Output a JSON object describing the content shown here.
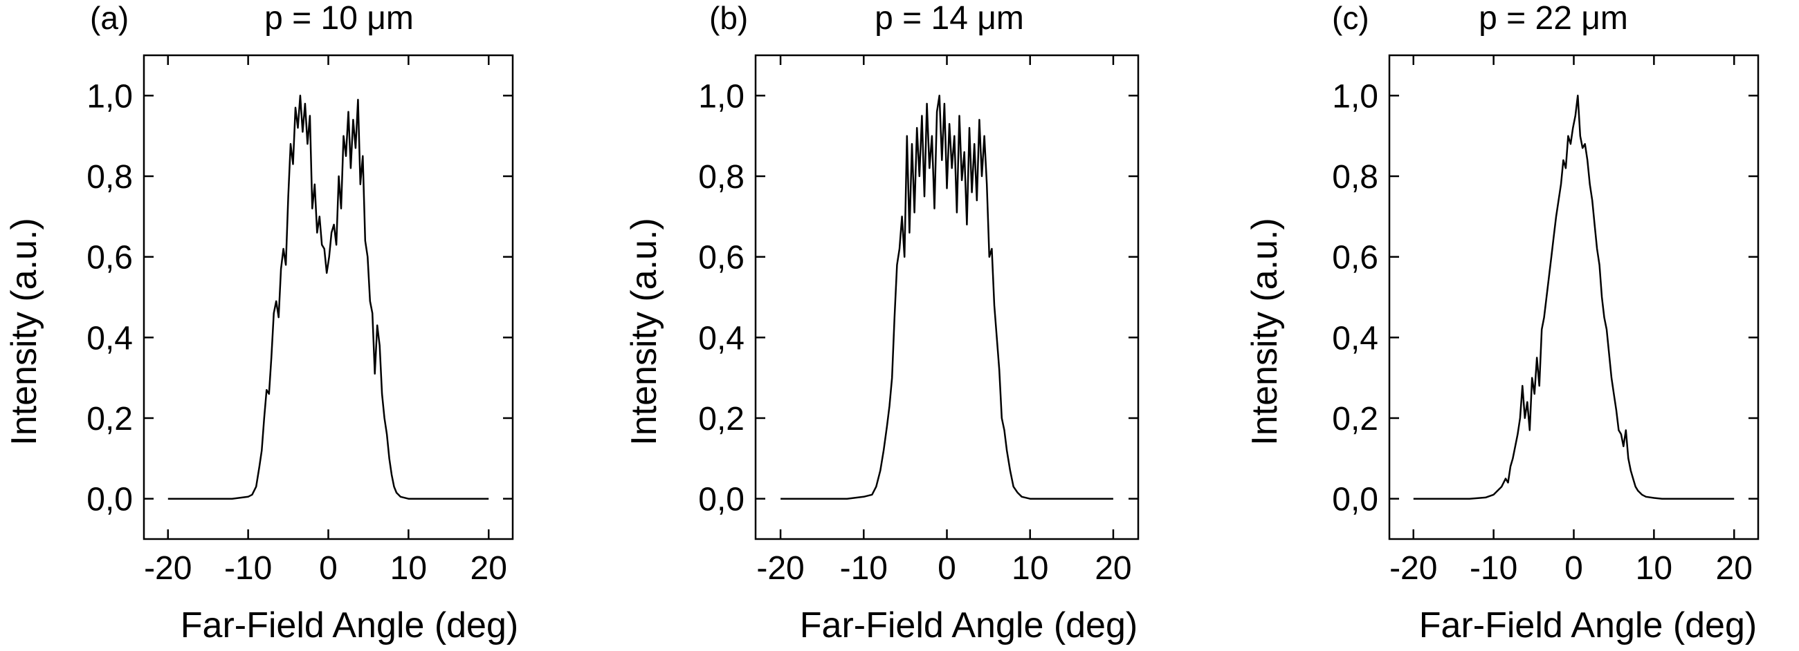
{
  "chart_data": [
    {
      "type": "line",
      "panel_label": "(a)",
      "title": "p = 10 μm",
      "xlabel": "Far-Field Angle (deg)",
      "ylabel": "Intensity (a.u.)",
      "xlim": [
        -23,
        23
      ],
      "ylim": [
        -0.1,
        1.1
      ],
      "xticks": [
        -20,
        -10,
        0,
        10,
        20
      ],
      "xtick_labels": [
        "-20",
        "-10",
        "0",
        "10",
        "20"
      ],
      "yticks": [
        0,
        0.2,
        0.4,
        0.6,
        0.8,
        1.0
      ],
      "ytick_labels": [
        "0,0",
        "0,2",
        "0,4",
        "0,6",
        "0,8",
        "1,0"
      ],
      "series": [
        {
          "name": "p = 10 μm",
          "x": [
            -20,
            -12,
            -10,
            -9.5,
            -9,
            -8.6,
            -8.3,
            -8.0,
            -7.7,
            -7.4,
            -7.1,
            -6.8,
            -6.5,
            -6.2,
            -5.9,
            -5.6,
            -5.3,
            -5.0,
            -4.7,
            -4.4,
            -4.1,
            -3.8,
            -3.5,
            -3.2,
            -2.9,
            -2.6,
            -2.3,
            -2.0,
            -1.7,
            -1.4,
            -1.1,
            -0.8,
            -0.5,
            -0.2,
            0.1,
            0.4,
            0.7,
            1.0,
            1.3,
            1.6,
            1.9,
            2.2,
            2.5,
            2.8,
            3.1,
            3.4,
            3.7,
            4.0,
            4.3,
            4.6,
            4.9,
            5.2,
            5.5,
            5.8,
            6.1,
            6.4,
            6.7,
            7.0,
            7.3,
            7.6,
            7.9,
            8.2,
            8.5,
            9.0,
            10,
            12,
            20
          ],
          "y": [
            0,
            0,
            0.005,
            0.01,
            0.03,
            0.08,
            0.12,
            0.2,
            0.27,
            0.26,
            0.35,
            0.46,
            0.49,
            0.45,
            0.57,
            0.62,
            0.58,
            0.75,
            0.88,
            0.83,
            0.97,
            0.92,
            1.0,
            0.91,
            0.98,
            0.88,
            0.95,
            0.72,
            0.78,
            0.66,
            0.7,
            0.63,
            0.62,
            0.56,
            0.6,
            0.66,
            0.68,
            0.63,
            0.8,
            0.72,
            0.9,
            0.85,
            0.96,
            0.82,
            0.94,
            0.87,
            0.99,
            0.78,
            0.85,
            0.64,
            0.6,
            0.49,
            0.46,
            0.31,
            0.43,
            0.38,
            0.26,
            0.2,
            0.16,
            0.1,
            0.06,
            0.03,
            0.015,
            0.005,
            0,
            0,
            0
          ]
        }
      ]
    },
    {
      "type": "line",
      "panel_label": "(b)",
      "title": "p = 14 μm",
      "xlabel": "Far-Field Angle (deg)",
      "ylabel": "Intensity (a.u.)",
      "xlim": [
        -23,
        23
      ],
      "ylim": [
        -0.1,
        1.1
      ],
      "xticks": [
        -20,
        -10,
        0,
        10,
        20
      ],
      "xtick_labels": [
        "-20",
        "-10",
        "0",
        "10",
        "20"
      ],
      "yticks": [
        0,
        0.2,
        0.4,
        0.6,
        0.8,
        1.0
      ],
      "ytick_labels": [
        "0,0",
        "0,2",
        "0,4",
        "0,6",
        "0,8",
        "1,0"
      ],
      "series": [
        {
          "name": "p = 14 μm",
          "x": [
            -20,
            -12,
            -10,
            -9,
            -8.5,
            -8.0,
            -7.6,
            -7.2,
            -6.9,
            -6.6,
            -6.3,
            -6.0,
            -5.7,
            -5.4,
            -5.1,
            -4.8,
            -4.5,
            -4.2,
            -3.9,
            -3.6,
            -3.3,
            -3.0,
            -2.7,
            -2.4,
            -2.1,
            -1.8,
            -1.5,
            -1.2,
            -0.9,
            -0.6,
            -0.3,
            0,
            0.3,
            0.6,
            0.9,
            1.2,
            1.5,
            1.8,
            2.1,
            2.4,
            2.7,
            3.0,
            3.3,
            3.6,
            3.9,
            4.2,
            4.5,
            4.8,
            5.1,
            5.4,
            5.7,
            6.0,
            6.3,
            6.6,
            6.9,
            7.2,
            7.6,
            8.0,
            8.5,
            9,
            10,
            12,
            20
          ],
          "y": [
            0,
            0,
            0.005,
            0.01,
            0.03,
            0.07,
            0.12,
            0.18,
            0.23,
            0.3,
            0.45,
            0.58,
            0.62,
            0.7,
            0.6,
            0.9,
            0.66,
            0.88,
            0.71,
            0.92,
            0.8,
            0.95,
            0.75,
            0.98,
            0.82,
            0.9,
            0.72,
            0.96,
            1.0,
            0.84,
            0.98,
            0.77,
            0.93,
            0.82,
            0.9,
            0.71,
            0.95,
            0.79,
            0.86,
            0.68,
            0.92,
            0.76,
            0.88,
            0.74,
            0.94,
            0.8,
            0.9,
            0.78,
            0.6,
            0.62,
            0.48,
            0.4,
            0.32,
            0.2,
            0.17,
            0.12,
            0.07,
            0.03,
            0.015,
            0.005,
            0,
            0,
            0
          ]
        }
      ]
    },
    {
      "type": "line",
      "panel_label": "(c)",
      "title": "p = 22 μm",
      "xlabel": "Far-Field Angle (deg)",
      "ylabel": "Intensity (a.u.)",
      "xlim": [
        -23,
        23
      ],
      "ylim": [
        -0.1,
        1.1
      ],
      "xticks": [
        -20,
        -10,
        0,
        10,
        20
      ],
      "xtick_labels": [
        "-20",
        "-10",
        "0",
        "10",
        "20"
      ],
      "yticks": [
        0,
        0.2,
        0.4,
        0.6,
        0.8,
        1.0
      ],
      "ytick_labels": [
        "0,0",
        "0,2",
        "0,4",
        "0,6",
        "0,8",
        "1,0"
      ],
      "series": [
        {
          "name": "p = 22 μm",
          "x": [
            -20,
            -13,
            -11,
            -10,
            -9.5,
            -9,
            -8.5,
            -8.2,
            -7.9,
            -7.6,
            -7.3,
            -7.0,
            -6.7,
            -6.4,
            -6.1,
            -5.8,
            -5.5,
            -5.2,
            -4.9,
            -4.6,
            -4.3,
            -4.0,
            -3.7,
            -3.4,
            -3.1,
            -2.8,
            -2.5,
            -2.2,
            -1.9,
            -1.6,
            -1.3,
            -1.0,
            -0.7,
            -0.4,
            -0.1,
            0.2,
            0.5,
            0.8,
            1.1,
            1.4,
            1.7,
            2.0,
            2.3,
            2.6,
            2.9,
            3.2,
            3.5,
            3.8,
            4.1,
            4.4,
            4.7,
            5.0,
            5.3,
            5.6,
            5.9,
            6.2,
            6.5,
            6.8,
            7.1,
            7.4,
            7.7,
            8.0,
            8.5,
            9,
            10,
            11,
            13,
            20
          ],
          "y": [
            0,
            0,
            0.003,
            0.01,
            0.02,
            0.03,
            0.05,
            0.04,
            0.08,
            0.1,
            0.13,
            0.16,
            0.2,
            0.28,
            0.2,
            0.24,
            0.17,
            0.3,
            0.26,
            0.35,
            0.28,
            0.42,
            0.45,
            0.5,
            0.55,
            0.6,
            0.65,
            0.7,
            0.74,
            0.78,
            0.84,
            0.82,
            0.9,
            0.88,
            0.92,
            0.95,
            1.0,
            0.9,
            0.87,
            0.88,
            0.84,
            0.78,
            0.74,
            0.68,
            0.62,
            0.58,
            0.5,
            0.45,
            0.42,
            0.36,
            0.3,
            0.26,
            0.22,
            0.17,
            0.16,
            0.13,
            0.17,
            0.1,
            0.07,
            0.05,
            0.03,
            0.02,
            0.01,
            0.005,
            0.002,
            0,
            0,
            0
          ]
        }
      ]
    }
  ]
}
